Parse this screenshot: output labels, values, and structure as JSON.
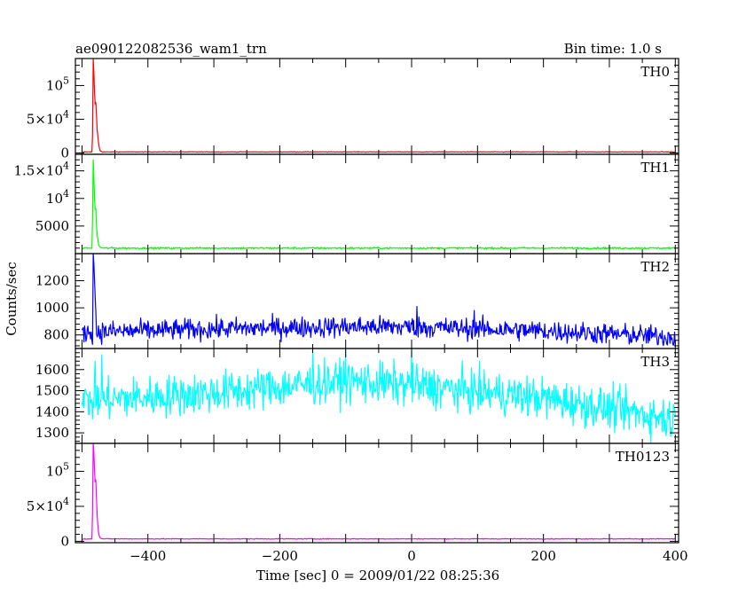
{
  "chart_data": {
    "type": "line",
    "title": "ae090122082536_wam1_trn",
    "subtitle": "Bin time: 1.0 s",
    "xlabel": "Time [sec] 0 = 2009/01/22 08:25:36",
    "ylabel": "Counts/sec",
    "xlim": [
      -510,
      405
    ],
    "x_ticks": [
      -400,
      -200,
      0,
      200,
      400
    ],
    "x_tick_labels": [
      "−400",
      "−200",
      "0",
      "200",
      "400"
    ],
    "grid": false,
    "panels": [
      {
        "name": "TH0",
        "color": "#ff0000",
        "kind": "burst",
        "ylim": [
          -2000,
          140000
        ],
        "y_ticks": [
          0,
          50000,
          100000
        ],
        "y_tick_labels": [
          {
            "mant": "0",
            "exp": ""
          },
          {
            "mant": "5×10",
            "exp": "4"
          },
          {
            "mant": "10",
            "exp": "5"
          }
        ],
        "baseline": 1500,
        "baseline_noise": 300,
        "peak_points": [
          [
            -485,
            1500
          ],
          [
            -484,
            25000
          ],
          [
            -483,
            140000
          ],
          [
            -482,
            120000
          ],
          [
            -481,
            90000
          ],
          [
            -480,
            72000
          ],
          [
            -479,
            75000
          ],
          [
            -478,
            55000
          ],
          [
            -477,
            35000
          ],
          [
            -476,
            25000
          ],
          [
            -475,
            16000
          ],
          [
            -474,
            9000
          ],
          [
            -473,
            5000
          ],
          [
            -472,
            3000
          ],
          [
            -470,
            2000
          ]
        ]
      },
      {
        "name": "TH1",
        "color": "#00ff00",
        "kind": "burst",
        "ylim": [
          0,
          18000
        ],
        "y_ticks": [
          5000,
          10000,
          15000
        ],
        "y_tick_labels": [
          {
            "mant": "5000",
            "exp": ""
          },
          {
            "mant": "10",
            "exp": "4"
          },
          {
            "mant": "1.5×10",
            "exp": "4"
          }
        ],
        "baseline": 1000,
        "baseline_noise": 120,
        "peak_points": [
          [
            -485,
            1000
          ],
          [
            -484,
            6000
          ],
          [
            -483,
            17000
          ],
          [
            -482,
            14000
          ],
          [
            -481,
            10000
          ],
          [
            -480,
            8000
          ],
          [
            -479,
            8200
          ],
          [
            -478,
            5000
          ],
          [
            -477,
            3500
          ],
          [
            -476,
            2500
          ],
          [
            -475,
            1800
          ],
          [
            -474,
            1400
          ],
          [
            -472,
            1150
          ],
          [
            -470,
            1050
          ]
        ]
      },
      {
        "name": "TH2",
        "color": "#0000ff",
        "kind": "noise",
        "ylim": [
          700,
          1400
        ],
        "y_ticks": [
          800,
          1000,
          1200
        ],
        "y_tick_labels": [
          {
            "mant": "800",
            "exp": ""
          },
          {
            "mant": "1000",
            "exp": ""
          },
          {
            "mant": "1200",
            "exp": ""
          }
        ],
        "trend": [
          [
            -500,
            820
          ],
          [
            -300,
            845
          ],
          [
            -100,
            860
          ],
          [
            0,
            860
          ],
          [
            200,
            830
          ],
          [
            400,
            785
          ]
        ],
        "noise": 55,
        "spikes": [
          [
            -483,
            1400
          ],
          [
            -482,
            1330
          ],
          [
            -481,
            1200
          ],
          [
            -480,
            1080
          ],
          [
            -479,
            980
          ],
          [
            8,
            1010
          ],
          [
            95,
            980
          ]
        ]
      },
      {
        "name": "TH3",
        "color": "#00ffff",
        "kind": "noise",
        "ylim": [
          1250,
          1700
        ],
        "y_ticks": [
          1300,
          1400,
          1500,
          1600
        ],
        "y_tick_labels": [
          {
            "mant": "1300",
            "exp": ""
          },
          {
            "mant": "1400",
            "exp": ""
          },
          {
            "mant": "1500",
            "exp": ""
          },
          {
            "mant": "1600",
            "exp": ""
          }
        ],
        "trend": [
          [
            -500,
            1450
          ],
          [
            -300,
            1490
          ],
          [
            -100,
            1545
          ],
          [
            0,
            1525
          ],
          [
            200,
            1465
          ],
          [
            400,
            1365
          ]
        ],
        "noise": 70,
        "spikes": [
          [
            -480,
            1640
          ],
          [
            -470,
            1670
          ],
          [
            -150,
            1685
          ],
          [
            -100,
            1695
          ],
          [
            0,
            1690
          ]
        ]
      },
      {
        "name": "TH0123",
        "color": "#ff00ff",
        "kind": "burst",
        "ylim": [
          -2000,
          140000
        ],
        "y_ticks": [
          0,
          50000,
          100000
        ],
        "y_tick_labels": [
          {
            "mant": "0",
            "exp": ""
          },
          {
            "mant": "5×10",
            "exp": "4"
          },
          {
            "mant": "10",
            "exp": "5"
          }
        ],
        "baseline": 3500,
        "baseline_noise": 450,
        "peak_points": [
          [
            -485,
            3500
          ],
          [
            -484,
            40000
          ],
          [
            -483,
            140000
          ],
          [
            -482,
            128000
          ],
          [
            -481,
            100000
          ],
          [
            -480,
            85000
          ],
          [
            -479,
            88000
          ],
          [
            -478,
            60000
          ],
          [
            -477,
            38000
          ],
          [
            -476,
            24000
          ],
          [
            -475,
            14000
          ],
          [
            -474,
            8000
          ],
          [
            -472,
            4500
          ],
          [
            -470,
            3800
          ]
        ]
      }
    ]
  }
}
